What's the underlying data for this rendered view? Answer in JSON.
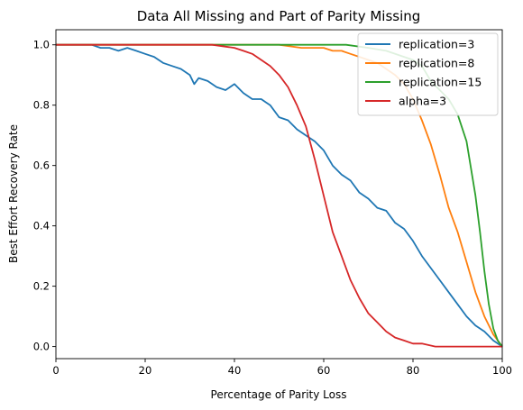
{
  "chart_data": {
    "type": "line",
    "title": "Data All Missing and Part of Parity Missing",
    "xlabel": "Percentage of Parity Loss",
    "ylabel": "Best Effort Recovery Rate",
    "xlim": [
      0,
      100
    ],
    "ylim": [
      -0.04,
      1.05
    ],
    "xticks": [
      0,
      20,
      40,
      60,
      80,
      100
    ],
    "yticks": [
      0.0,
      0.2,
      0.4,
      0.6,
      0.8,
      1.0
    ],
    "xtick_labels": [
      "0",
      "20",
      "40",
      "60",
      "80",
      "100"
    ],
    "ytick_labels": [
      "0.0",
      "0.2",
      "0.4",
      "0.6",
      "0.8",
      "1.0"
    ],
    "grid": false,
    "legend_position": "top-right",
    "series": [
      {
        "name": "replication=3",
        "color": "#1f77b4",
        "x": [
          0,
          5,
          8,
          10,
          12,
          14,
          16,
          18,
          20,
          22,
          24,
          26,
          28,
          30,
          31,
          32,
          34,
          36,
          38,
          40,
          42,
          44,
          46,
          47,
          48,
          50,
          52,
          54,
          56,
          58,
          60,
          62,
          64,
          66,
          68,
          70,
          72,
          74,
          76,
          78,
          80,
          82,
          84,
          86,
          88,
          90,
          92,
          94,
          96,
          98,
          100
        ],
        "y": [
          1.0,
          1.0,
          1.0,
          0.99,
          0.99,
          0.98,
          0.99,
          0.98,
          0.97,
          0.96,
          0.94,
          0.93,
          0.92,
          0.9,
          0.87,
          0.89,
          0.88,
          0.86,
          0.85,
          0.87,
          0.84,
          0.82,
          0.82,
          0.81,
          0.8,
          0.76,
          0.75,
          0.72,
          0.7,
          0.68,
          0.65,
          0.6,
          0.57,
          0.55,
          0.51,
          0.49,
          0.46,
          0.45,
          0.41,
          0.39,
          0.35,
          0.3,
          0.26,
          0.22,
          0.18,
          0.14,
          0.1,
          0.07,
          0.05,
          0.02,
          0.0
        ]
      },
      {
        "name": "replication=8",
        "color": "#ff7f0e",
        "x": [
          0,
          10,
          20,
          30,
          40,
          50,
          55,
          60,
          62,
          64,
          66,
          68,
          70,
          72,
          74,
          76,
          78,
          80,
          82,
          84,
          86,
          88,
          90,
          92,
          94,
          96,
          98,
          100
        ],
        "y": [
          1.0,
          1.0,
          1.0,
          1.0,
          1.0,
          1.0,
          0.99,
          0.99,
          0.98,
          0.98,
          0.97,
          0.96,
          0.95,
          0.94,
          0.92,
          0.9,
          0.87,
          0.82,
          0.75,
          0.67,
          0.57,
          0.46,
          0.38,
          0.28,
          0.18,
          0.1,
          0.04,
          0.0
        ]
      },
      {
        "name": "replication=15",
        "color": "#2ca02c",
        "x": [
          0,
          10,
          20,
          30,
          40,
          50,
          60,
          65,
          70,
          74,
          78,
          80,
          82,
          84,
          86,
          88,
          90,
          92,
          94,
          95,
          96,
          97,
          98,
          99,
          100
        ],
        "y": [
          1.0,
          1.0,
          1.0,
          1.0,
          1.0,
          1.0,
          1.0,
          1.0,
          0.99,
          0.98,
          0.96,
          0.95,
          0.93,
          0.88,
          0.85,
          0.82,
          0.77,
          0.68,
          0.5,
          0.38,
          0.25,
          0.14,
          0.06,
          0.02,
          0.0
        ]
      },
      {
        "name": "alpha=3",
        "color": "#d62728",
        "x": [
          0,
          10,
          20,
          30,
          35,
          40,
          42,
          44,
          46,
          48,
          50,
          52,
          54,
          56,
          58,
          60,
          62,
          64,
          66,
          68,
          70,
          72,
          74,
          76,
          78,
          80,
          82,
          85,
          90,
          95,
          100
        ],
        "y": [
          1.0,
          1.0,
          1.0,
          1.0,
          1.0,
          0.99,
          0.98,
          0.97,
          0.95,
          0.93,
          0.9,
          0.86,
          0.8,
          0.73,
          0.62,
          0.5,
          0.38,
          0.3,
          0.22,
          0.16,
          0.11,
          0.08,
          0.05,
          0.03,
          0.02,
          0.01,
          0.01,
          0.0,
          0.0,
          0.0,
          0.0
        ]
      }
    ]
  }
}
